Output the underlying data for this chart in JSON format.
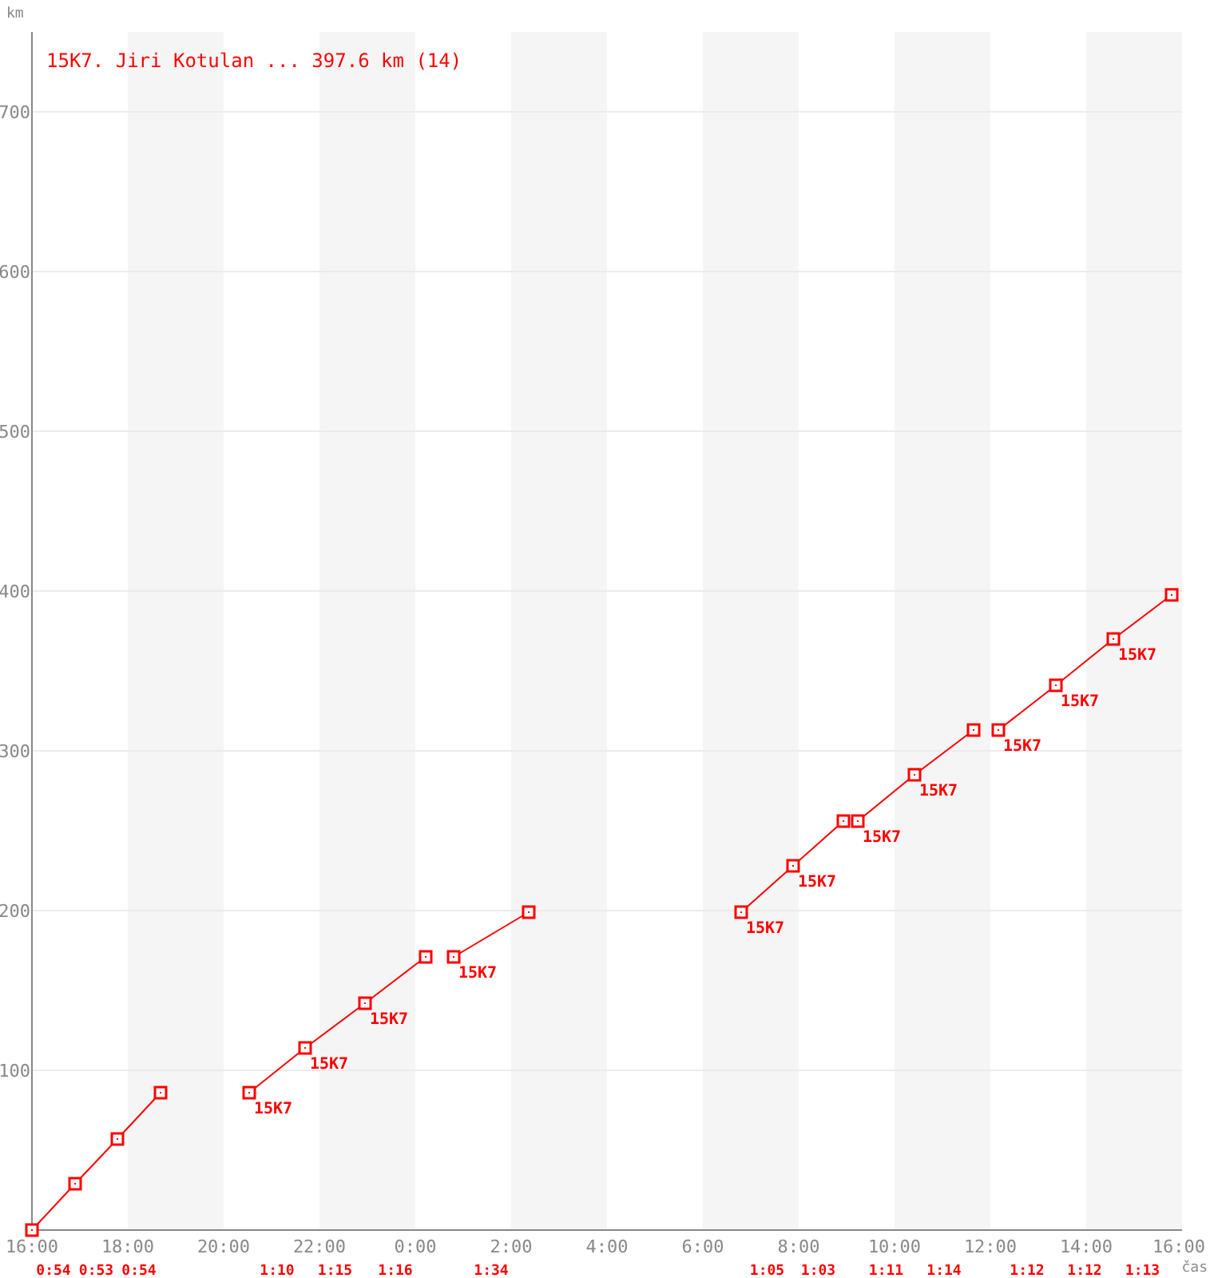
{
  "chart_data": {
    "type": "line",
    "title": "15K7. Jiri Kotulan ... 397.6 km (14)",
    "ylabel": "km",
    "xlabel": "čas",
    "xlim": [
      "2000-01-01T16:00",
      "2000-01-02T16:00"
    ],
    "ylim": [
      0,
      750
    ],
    "xticks": [
      {
        "value": "2000-01-01T16:00",
        "label": "16:00"
      },
      {
        "value": "2000-01-01T18:00",
        "label": "18:00"
      },
      {
        "value": "2000-01-01T20:00",
        "label": "20:00"
      },
      {
        "value": "2000-01-01T22:00",
        "label": "22:00"
      },
      {
        "value": "2000-01-02T00:00",
        "label": "0:00"
      },
      {
        "value": "2000-01-02T02:00",
        "label": "2:00"
      },
      {
        "value": "2000-01-02T04:00",
        "label": "4:00"
      },
      {
        "value": "2000-01-02T06:00",
        "label": "6:00"
      },
      {
        "value": "2000-01-02T08:00",
        "label": "8:00"
      },
      {
        "value": "2000-01-02T10:00",
        "label": "10:00"
      },
      {
        "value": "2000-01-02T12:00",
        "label": "12:00"
      },
      {
        "value": "2000-01-02T14:00",
        "label": "14:00"
      },
      {
        "value": "2000-01-02T16:00",
        "label": "16:00"
      }
    ],
    "yticks": [
      100,
      200,
      300,
      400,
      500,
      600,
      700
    ],
    "grid": "y",
    "marker": "square",
    "line_style": "solid",
    "bands": [
      {
        "axis": "x",
        "from": "2000-01-01T18:00",
        "to": "2000-01-01T20:00",
        "color": "#f5f5f5"
      },
      {
        "axis": "x",
        "from": "2000-01-01T22:00",
        "to": "2000-01-02T00:00",
        "color": "#f5f5f5"
      },
      {
        "axis": "x",
        "from": "2000-01-02T02:00",
        "to": "2000-01-02T04:00",
        "color": "#f5f5f5"
      },
      {
        "axis": "x",
        "from": "2000-01-02T06:00",
        "to": "2000-01-02T08:00",
        "color": "#f5f5f5"
      },
      {
        "axis": "x",
        "from": "2000-01-02T10:00",
        "to": "2000-01-02T12:00",
        "color": "#f5f5f5"
      },
      {
        "axis": "x",
        "from": "2000-01-02T14:00",
        "to": "2000-01-02T16:00",
        "color": "#f5f5f5"
      }
    ],
    "series": [
      {
        "color": "#ff0000",
        "x": [
          "2000-01-01T16:00",
          "2000-01-01T16:54",
          "2000-01-01T17:47",
          "2000-01-01T18:41"
        ],
        "values": [
          0,
          29,
          57,
          86
        ]
      },
      {
        "color": "#ff0000",
        "x": [
          "2000-01-01T20:32",
          "2000-01-01T21:42",
          "2000-01-01T22:57",
          "2000-01-02T00:13"
        ],
        "values": [
          86,
          114,
          142,
          171
        ]
      },
      {
        "color": "#ff0000",
        "x": [
          "2000-01-02T00:48",
          "2000-01-02T02:22"
        ],
        "values": [
          171,
          199
        ]
      },
      {
        "color": "#ff0000",
        "x": [
          "2000-01-02T06:48",
          "2000-01-02T07:53",
          "2000-01-02T08:56"
        ],
        "values": [
          199,
          228,
          256
        ]
      },
      {
        "color": "#ff0000",
        "x": [
          "2000-01-02T09:14",
          "2000-01-02T10:25",
          "2000-01-02T11:39"
        ],
        "values": [
          256,
          285,
          313
        ]
      },
      {
        "color": "#ff0000",
        "x": [
          "2000-01-02T12:10",
          "2000-01-02T13:22",
          "2000-01-02T14:34",
          "2000-01-02T15:47"
        ],
        "values": [
          313,
          341,
          370,
          397.6
        ]
      }
    ],
    "annotations": [
      "0:54",
      "0:53",
      "0:54",
      "1:10",
      "1:15",
      "1:16",
      "1:34",
      "1:05",
      "1:03",
      "1:11",
      "1:14",
      "1:12",
      "1:12",
      "1:13",
      {
        "text": "15K7",
        "x": "2000-01-01T20:32",
        "y": 86
      },
      {
        "text": "15K7",
        "x": "2000-01-01T21:42",
        "y": 114
      },
      {
        "text": "15K7",
        "x": "2000-01-01T22:57",
        "y": 142
      },
      {
        "text": "15K7",
        "x": "2000-01-02T00:48",
        "y": 171
      },
      {
        "text": "15K7",
        "x": "2000-01-02T06:48",
        "y": 199
      },
      {
        "text": "15K7",
        "x": "2000-01-02T07:53",
        "y": 228
      },
      {
        "text": "15K7",
        "x": "2000-01-02T09:14",
        "y": 256
      },
      {
        "text": "15K7",
        "x": "2000-01-02T10:25",
        "y": 285
      },
      {
        "text": "15K7",
        "x": "2000-01-02T12:10",
        "y": 313
      },
      {
        "text": "15K7",
        "x": "2000-01-02T13:22",
        "y": 341
      },
      {
        "text": "15K7",
        "x": "2000-01-02T14:34",
        "y": 370
      }
    ]
  }
}
